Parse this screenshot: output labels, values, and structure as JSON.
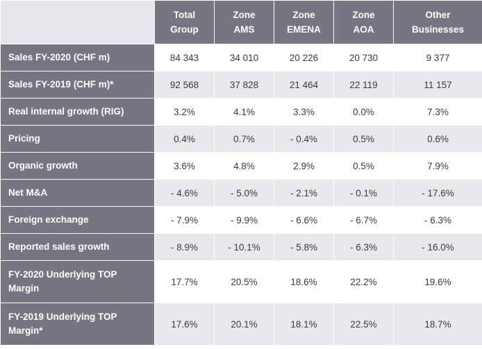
{
  "columns": [
    {
      "line1": "Total",
      "line2": "Group"
    },
    {
      "line1": "Zone",
      "line2": "AMS"
    },
    {
      "line1": "Zone",
      "line2": "EMENA"
    },
    {
      "line1": "Zone",
      "line2": "AOA"
    },
    {
      "line1": "Other",
      "line2": "Businesses"
    }
  ],
  "rows": [
    {
      "label": "Sales FY-2020 (CHF m)",
      "values": [
        "84 343",
        "34 010",
        "20 226",
        "20 730",
        "9 377"
      ]
    },
    {
      "label": "Sales FY-2019 (CHF m)*",
      "values": [
        "92 568",
        "37 828",
        "21 464",
        "22 119",
        "11 157"
      ]
    },
    {
      "label": "Real internal growth (RIG)",
      "values": [
        "3.2%",
        "4.1%",
        "3.3%",
        "0.0%",
        "7.3%"
      ]
    },
    {
      "label": "Pricing",
      "values": [
        "0.4%",
        "0.7%",
        "- 0.4%",
        "0.5%",
        "0.6%"
      ]
    },
    {
      "label": "Organic growth",
      "values": [
        "3.6%",
        "4.8%",
        "2.9%",
        "0.5%",
        "7.9%"
      ]
    },
    {
      "label": "Net M&A",
      "values": [
        "- 4.6%",
        "- 5.0%",
        "- 2.1%",
        "- 0.1%",
        "- 17.6%"
      ]
    },
    {
      "label": "Foreign exchange",
      "values": [
        "- 7.9%",
        "- 9.9%",
        "- 6.6%",
        "- 6.7%",
        "- 6.3%"
      ]
    },
    {
      "label": "Reported sales growth",
      "values": [
        "- 8.9%",
        "- 10.1%",
        "- 5.8%",
        "- 6.3%",
        "- 16.0%"
      ]
    },
    {
      "label_line1": "FY-2020 Underlying TOP",
      "label_line2": "Margin",
      "values": [
        "17.7%",
        "20.5%",
        "18.6%",
        "22.2%",
        "19.6%"
      ]
    },
    {
      "label_line1": "FY-2019 Underlying TOP",
      "label_line2": "Margin*",
      "values": [
        "17.6%",
        "20.1%",
        "18.1%",
        "22.5%",
        "18.7%"
      ]
    }
  ]
}
